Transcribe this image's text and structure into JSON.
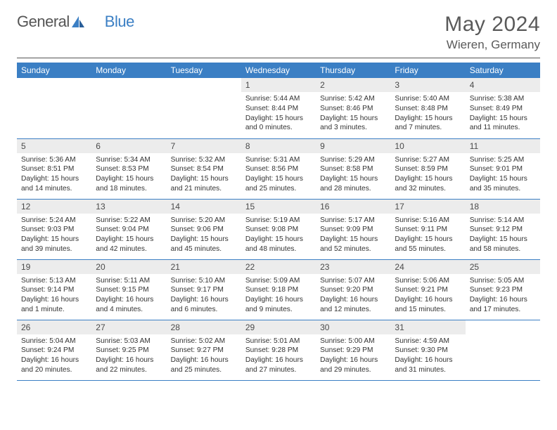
{
  "brand": {
    "part1": "General",
    "part2": "Blue"
  },
  "title": "May 2024",
  "location": "Wieren, Germany",
  "colors": {
    "header_bg": "#3b7fc4",
    "header_fg": "#ffffff",
    "daynum_bg": "#ececec",
    "rule": "#555555",
    "text": "#333333"
  },
  "weekdays": [
    "Sunday",
    "Monday",
    "Tuesday",
    "Wednesday",
    "Thursday",
    "Friday",
    "Saturday"
  ],
  "weeks": [
    [
      null,
      null,
      null,
      {
        "n": "1",
        "sr": "Sunrise: 5:44 AM",
        "ss": "Sunset: 8:44 PM",
        "dl": "Daylight: 15 hours and 0 minutes."
      },
      {
        "n": "2",
        "sr": "Sunrise: 5:42 AM",
        "ss": "Sunset: 8:46 PM",
        "dl": "Daylight: 15 hours and 3 minutes."
      },
      {
        "n": "3",
        "sr": "Sunrise: 5:40 AM",
        "ss": "Sunset: 8:48 PM",
        "dl": "Daylight: 15 hours and 7 minutes."
      },
      {
        "n": "4",
        "sr": "Sunrise: 5:38 AM",
        "ss": "Sunset: 8:49 PM",
        "dl": "Daylight: 15 hours and 11 minutes."
      }
    ],
    [
      {
        "n": "5",
        "sr": "Sunrise: 5:36 AM",
        "ss": "Sunset: 8:51 PM",
        "dl": "Daylight: 15 hours and 14 minutes."
      },
      {
        "n": "6",
        "sr": "Sunrise: 5:34 AM",
        "ss": "Sunset: 8:53 PM",
        "dl": "Daylight: 15 hours and 18 minutes."
      },
      {
        "n": "7",
        "sr": "Sunrise: 5:32 AM",
        "ss": "Sunset: 8:54 PM",
        "dl": "Daylight: 15 hours and 21 minutes."
      },
      {
        "n": "8",
        "sr": "Sunrise: 5:31 AM",
        "ss": "Sunset: 8:56 PM",
        "dl": "Daylight: 15 hours and 25 minutes."
      },
      {
        "n": "9",
        "sr": "Sunrise: 5:29 AM",
        "ss": "Sunset: 8:58 PM",
        "dl": "Daylight: 15 hours and 28 minutes."
      },
      {
        "n": "10",
        "sr": "Sunrise: 5:27 AM",
        "ss": "Sunset: 8:59 PM",
        "dl": "Daylight: 15 hours and 32 minutes."
      },
      {
        "n": "11",
        "sr": "Sunrise: 5:25 AM",
        "ss": "Sunset: 9:01 PM",
        "dl": "Daylight: 15 hours and 35 minutes."
      }
    ],
    [
      {
        "n": "12",
        "sr": "Sunrise: 5:24 AM",
        "ss": "Sunset: 9:03 PM",
        "dl": "Daylight: 15 hours and 39 minutes."
      },
      {
        "n": "13",
        "sr": "Sunrise: 5:22 AM",
        "ss": "Sunset: 9:04 PM",
        "dl": "Daylight: 15 hours and 42 minutes."
      },
      {
        "n": "14",
        "sr": "Sunrise: 5:20 AM",
        "ss": "Sunset: 9:06 PM",
        "dl": "Daylight: 15 hours and 45 minutes."
      },
      {
        "n": "15",
        "sr": "Sunrise: 5:19 AM",
        "ss": "Sunset: 9:08 PM",
        "dl": "Daylight: 15 hours and 48 minutes."
      },
      {
        "n": "16",
        "sr": "Sunrise: 5:17 AM",
        "ss": "Sunset: 9:09 PM",
        "dl": "Daylight: 15 hours and 52 minutes."
      },
      {
        "n": "17",
        "sr": "Sunrise: 5:16 AM",
        "ss": "Sunset: 9:11 PM",
        "dl": "Daylight: 15 hours and 55 minutes."
      },
      {
        "n": "18",
        "sr": "Sunrise: 5:14 AM",
        "ss": "Sunset: 9:12 PM",
        "dl": "Daylight: 15 hours and 58 minutes."
      }
    ],
    [
      {
        "n": "19",
        "sr": "Sunrise: 5:13 AM",
        "ss": "Sunset: 9:14 PM",
        "dl": "Daylight: 16 hours and 1 minute."
      },
      {
        "n": "20",
        "sr": "Sunrise: 5:11 AM",
        "ss": "Sunset: 9:15 PM",
        "dl": "Daylight: 16 hours and 4 minutes."
      },
      {
        "n": "21",
        "sr": "Sunrise: 5:10 AM",
        "ss": "Sunset: 9:17 PM",
        "dl": "Daylight: 16 hours and 6 minutes."
      },
      {
        "n": "22",
        "sr": "Sunrise: 5:09 AM",
        "ss": "Sunset: 9:18 PM",
        "dl": "Daylight: 16 hours and 9 minutes."
      },
      {
        "n": "23",
        "sr": "Sunrise: 5:07 AM",
        "ss": "Sunset: 9:20 PM",
        "dl": "Daylight: 16 hours and 12 minutes."
      },
      {
        "n": "24",
        "sr": "Sunrise: 5:06 AM",
        "ss": "Sunset: 9:21 PM",
        "dl": "Daylight: 16 hours and 15 minutes."
      },
      {
        "n": "25",
        "sr": "Sunrise: 5:05 AM",
        "ss": "Sunset: 9:23 PM",
        "dl": "Daylight: 16 hours and 17 minutes."
      }
    ],
    [
      {
        "n": "26",
        "sr": "Sunrise: 5:04 AM",
        "ss": "Sunset: 9:24 PM",
        "dl": "Daylight: 16 hours and 20 minutes."
      },
      {
        "n": "27",
        "sr": "Sunrise: 5:03 AM",
        "ss": "Sunset: 9:25 PM",
        "dl": "Daylight: 16 hours and 22 minutes."
      },
      {
        "n": "28",
        "sr": "Sunrise: 5:02 AM",
        "ss": "Sunset: 9:27 PM",
        "dl": "Daylight: 16 hours and 25 minutes."
      },
      {
        "n": "29",
        "sr": "Sunrise: 5:01 AM",
        "ss": "Sunset: 9:28 PM",
        "dl": "Daylight: 16 hours and 27 minutes."
      },
      {
        "n": "30",
        "sr": "Sunrise: 5:00 AM",
        "ss": "Sunset: 9:29 PM",
        "dl": "Daylight: 16 hours and 29 minutes."
      },
      {
        "n": "31",
        "sr": "Sunrise: 4:59 AM",
        "ss": "Sunset: 9:30 PM",
        "dl": "Daylight: 16 hours and 31 minutes."
      },
      null
    ]
  ]
}
